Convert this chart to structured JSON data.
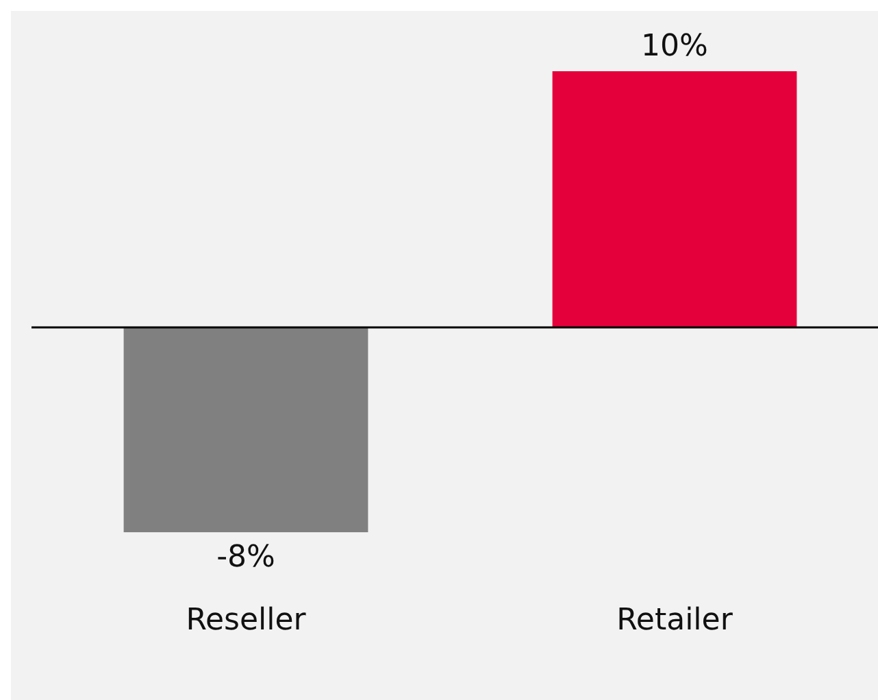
{
  "chart_data": {
    "type": "bar",
    "categories": [
      "Reseller",
      "Retailer"
    ],
    "values": [
      -8,
      10
    ],
    "colors": [
      "#808080",
      "#e4003b"
    ],
    "value_labels": [
      "-8%",
      "10%"
    ],
    "grid": false,
    "legend": false
  }
}
